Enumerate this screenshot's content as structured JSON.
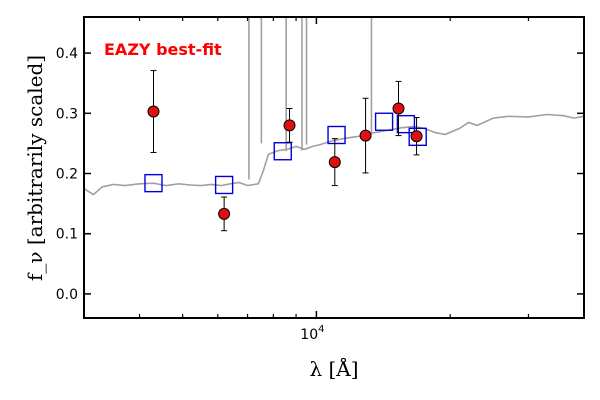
{
  "chart_data": {
    "type": "scatter",
    "title": "",
    "xlabel": "λ [Å]",
    "ylabel": "f_ν [arbitrarily scaled]",
    "ylim": [
      -0.04,
      0.46
    ],
    "xlim": [
      3000,
      40000
    ],
    "xscale": "log",
    "grid": false,
    "y_ticks": [
      "0.0",
      "0.1",
      "0.2",
      "0.3",
      "0.4"
    ],
    "x_tick_label": {
      "base": "10",
      "exp": "4"
    },
    "annotation": {
      "text": "EAZY best-fit",
      "color": "#ff0000"
    },
    "colors": {
      "model": "#a0a0a0",
      "observed": "#e01010",
      "modeled": "#0000dd"
    },
    "series": [
      {
        "kind": "observed",
        "x": [
          4300,
          6200,
          8700,
          11000,
          12900,
          15300,
          16800
        ],
        "y": [
          0.303,
          0.133,
          0.28,
          0.219,
          0.263,
          0.308,
          0.262
        ],
        "yerr": [
          0.068,
          0.028,
          0.028,
          0.039,
          0.062,
          0.045,
          0.031
        ]
      },
      {
        "kind": "modeled",
        "x": [
          4300,
          6200,
          8400,
          11100,
          14200,
          15900,
          16900
        ],
        "y": [
          0.184,
          0.181,
          0.237,
          0.264,
          0.286,
          0.282,
          0.261
        ]
      },
      {
        "kind": "model_sed",
        "x": [
          3000,
          3150,
          3300,
          3500,
          3700,
          4000,
          4300,
          4600,
          4900,
          5200,
          5500,
          5800,
          6100,
          6400,
          6700,
          7000,
          7400,
          7600,
          7800,
          8200,
          8600,
          9000,
          9400,
          9800,
          10200,
          10800,
          11500,
          12500,
          13500,
          14500,
          15500,
          16500,
          17500,
          18500,
          19500,
          21000,
          22000,
          23000,
          25000,
          27000,
          30000,
          33000,
          36000,
          38000,
          40000
        ],
        "y": [
          0.175,
          0.165,
          0.178,
          0.182,
          0.18,
          0.183,
          0.184,
          0.18,
          0.183,
          0.181,
          0.18,
          0.182,
          0.18,
          0.183,
          0.185,
          0.18,
          0.183,
          0.205,
          0.232,
          0.238,
          0.24,
          0.245,
          0.24,
          0.245,
          0.248,
          0.254,
          0.258,
          0.262,
          0.268,
          0.272,
          0.276,
          0.278,
          0.275,
          0.268,
          0.265,
          0.275,
          0.285,
          0.28,
          0.292,
          0.295,
          0.294,
          0.298,
          0.296,
          0.292,
          0.295
        ]
      }
    ]
  }
}
